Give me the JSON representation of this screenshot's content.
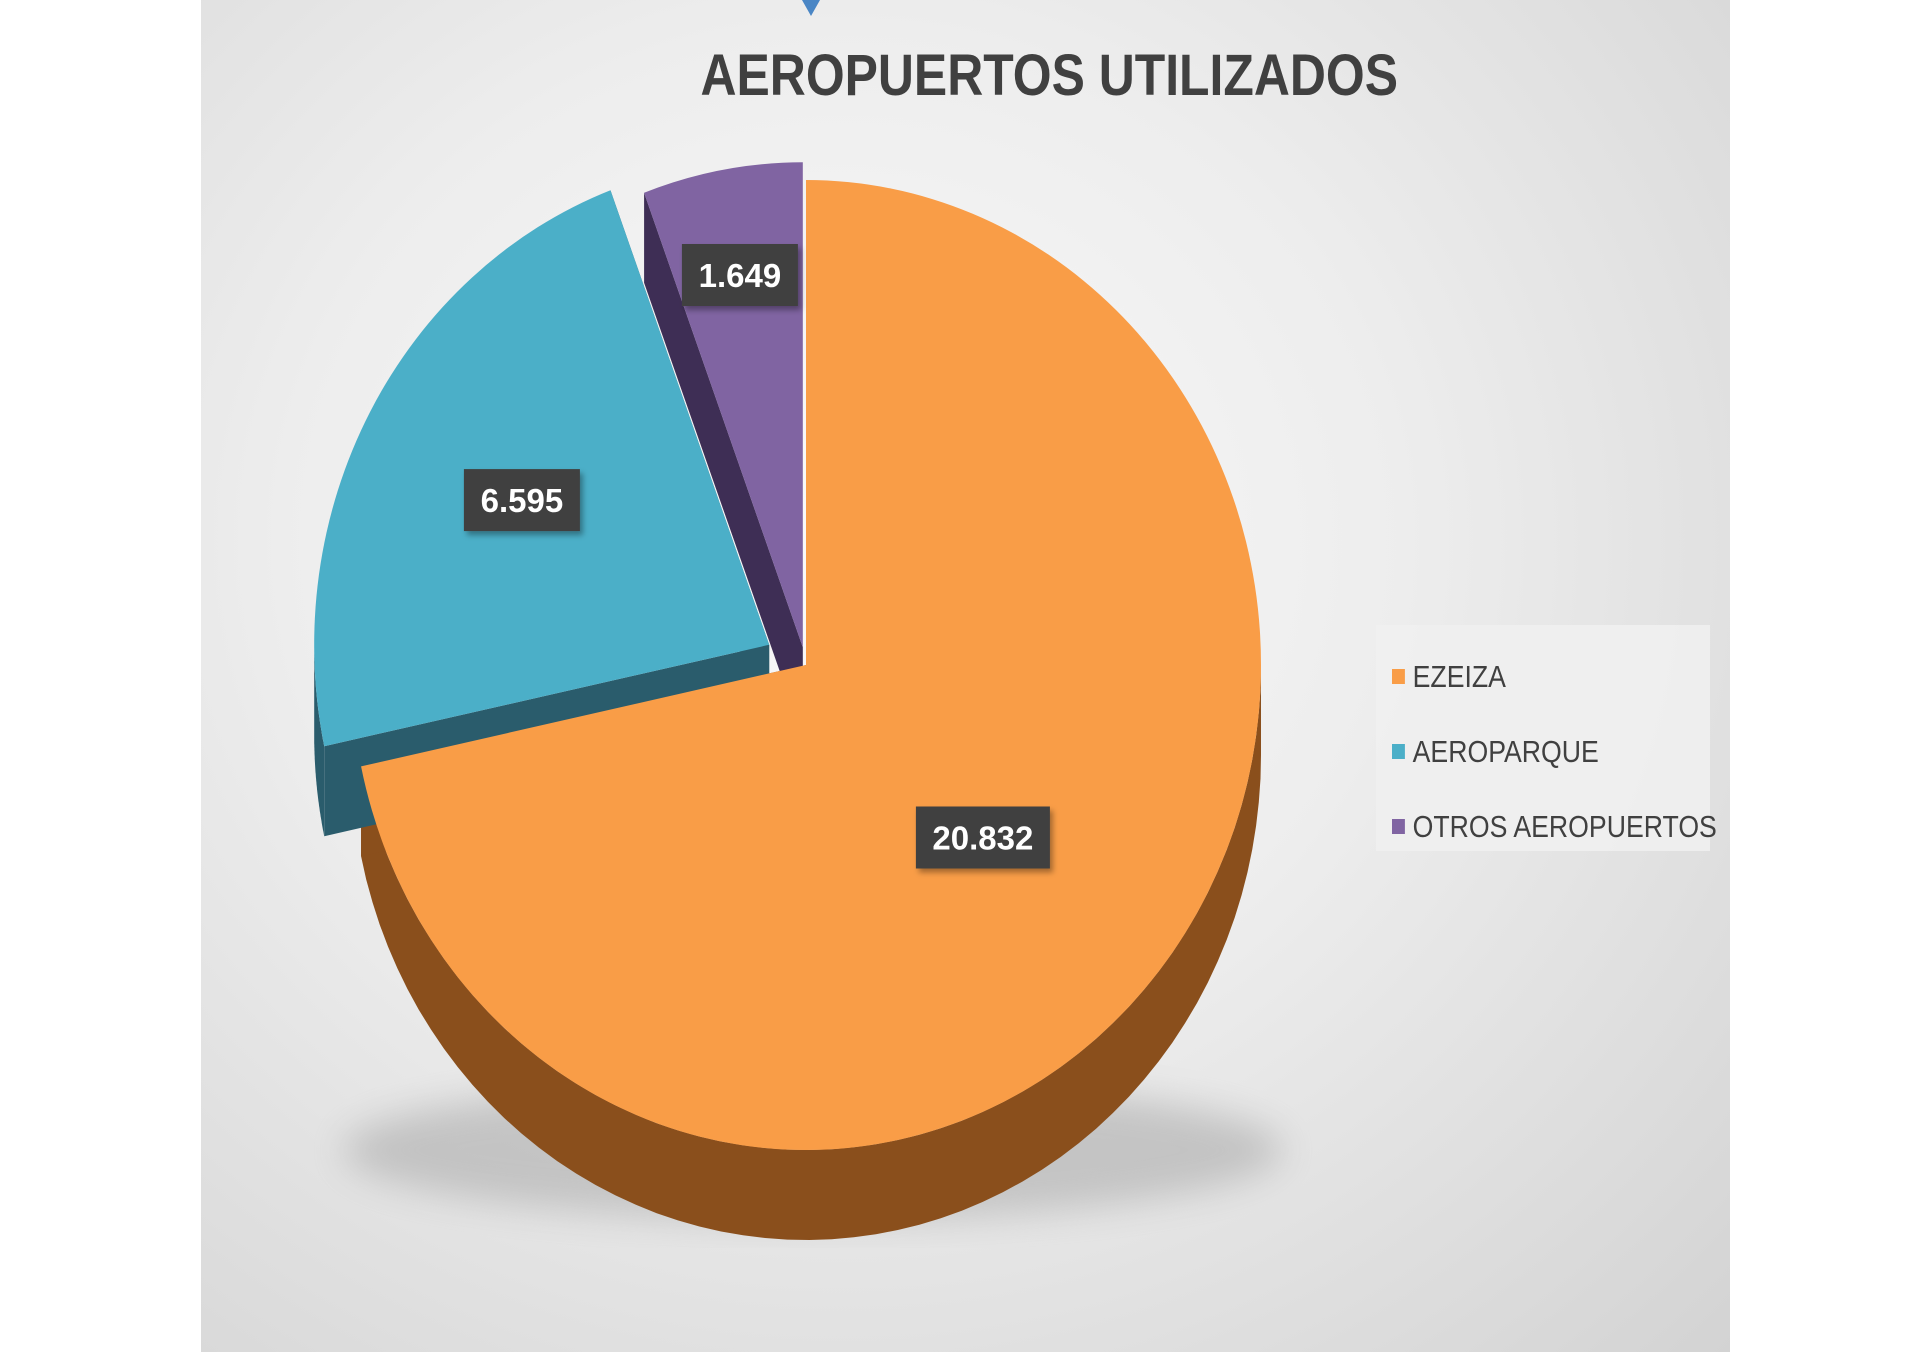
{
  "chart_data": {
    "type": "pie",
    "title": "AEROPUERTOS UTILIZADOS",
    "categories": [
      "EZEIZA",
      "AEROPARQUE",
      "OTROS AEROPUERTOS"
    ],
    "values": [
      20832,
      6595,
      1649
    ],
    "value_labels": [
      "20.832",
      "6.595",
      "1.649"
    ],
    "colors": [
      "#f99d47",
      "#4bafc8",
      "#8064a2"
    ],
    "side_colors": [
      "#8a4f1c",
      "#2a5c6c",
      "#3e2e55"
    ],
    "legend_position": "right",
    "style": "3d-exploded"
  }
}
